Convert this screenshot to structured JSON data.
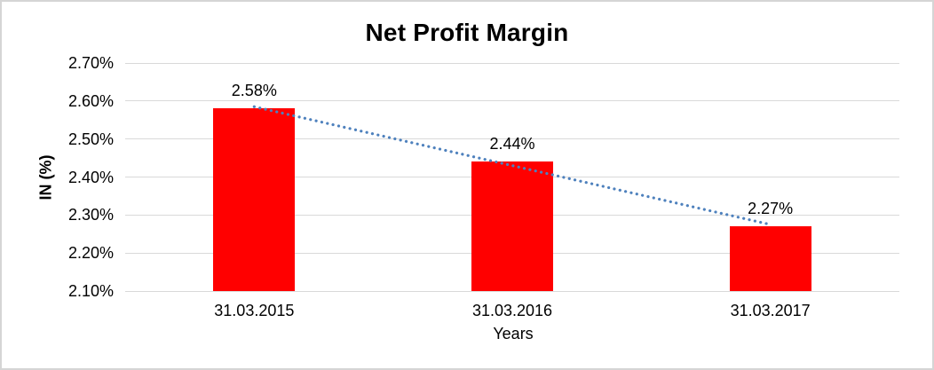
{
  "chart_data": {
    "type": "bar",
    "title": "Net Profit Margin",
    "xlabel": "Years",
    "ylabel": "IN (%)",
    "categories": [
      "31.03.2015",
      "31.03.2016",
      "31.03.2017"
    ],
    "values": [
      2.58,
      2.44,
      2.27
    ],
    "value_labels": [
      "2.58%",
      "2.44%",
      "2.27%"
    ],
    "ylim": [
      2.1,
      2.7
    ],
    "y_ticks": [
      {
        "label": "2.70%",
        "value": 2.7
      },
      {
        "label": "2.60%",
        "value": 2.6
      },
      {
        "label": "2.50%",
        "value": 2.5
      },
      {
        "label": "2.40%",
        "value": 2.4
      },
      {
        "label": "2.30%",
        "value": 2.3
      },
      {
        "label": "2.20%",
        "value": 2.2
      },
      {
        "label": "2.10%",
        "value": 2.1
      }
    ],
    "grid": true,
    "legend": "none",
    "bar_color": "#ff0000",
    "gridline_color": "#d9d9d9",
    "text_color": "#000000",
    "frame_color": "#d5d5d5",
    "trendline": {
      "type": "linear",
      "style": "dotted",
      "color": "#4e81bd"
    }
  }
}
